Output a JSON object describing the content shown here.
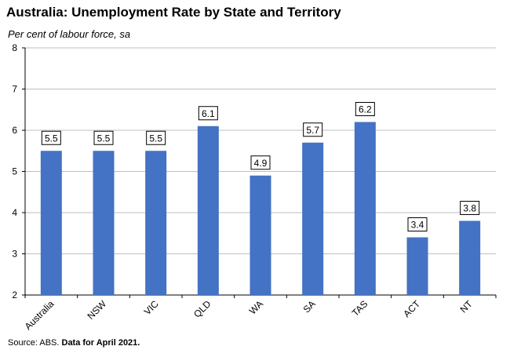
{
  "header": {
    "title": "Australia: Unemployment Rate by State and Territory",
    "subtitle": "Per cent of labour force, sa"
  },
  "footer": {
    "source": "Source: ABS.",
    "note": "Data for April 2021."
  },
  "chart_data": {
    "type": "bar",
    "categories": [
      "Australia",
      "NSW",
      "VIC",
      "QLD",
      "WA",
      "SA",
      "TAS",
      "ACT",
      "NT"
    ],
    "series": [
      {
        "values": [
          5.5,
          5.5,
          5.5,
          6.1,
          4.9,
          5.7,
          6.2,
          3.4,
          3.8
        ]
      }
    ],
    "ylim": [
      2,
      8
    ],
    "yticks": [
      2,
      3,
      4,
      5,
      6,
      7,
      8
    ],
    "grid": true,
    "bar_color": "#4472C4",
    "data_labels": true
  }
}
